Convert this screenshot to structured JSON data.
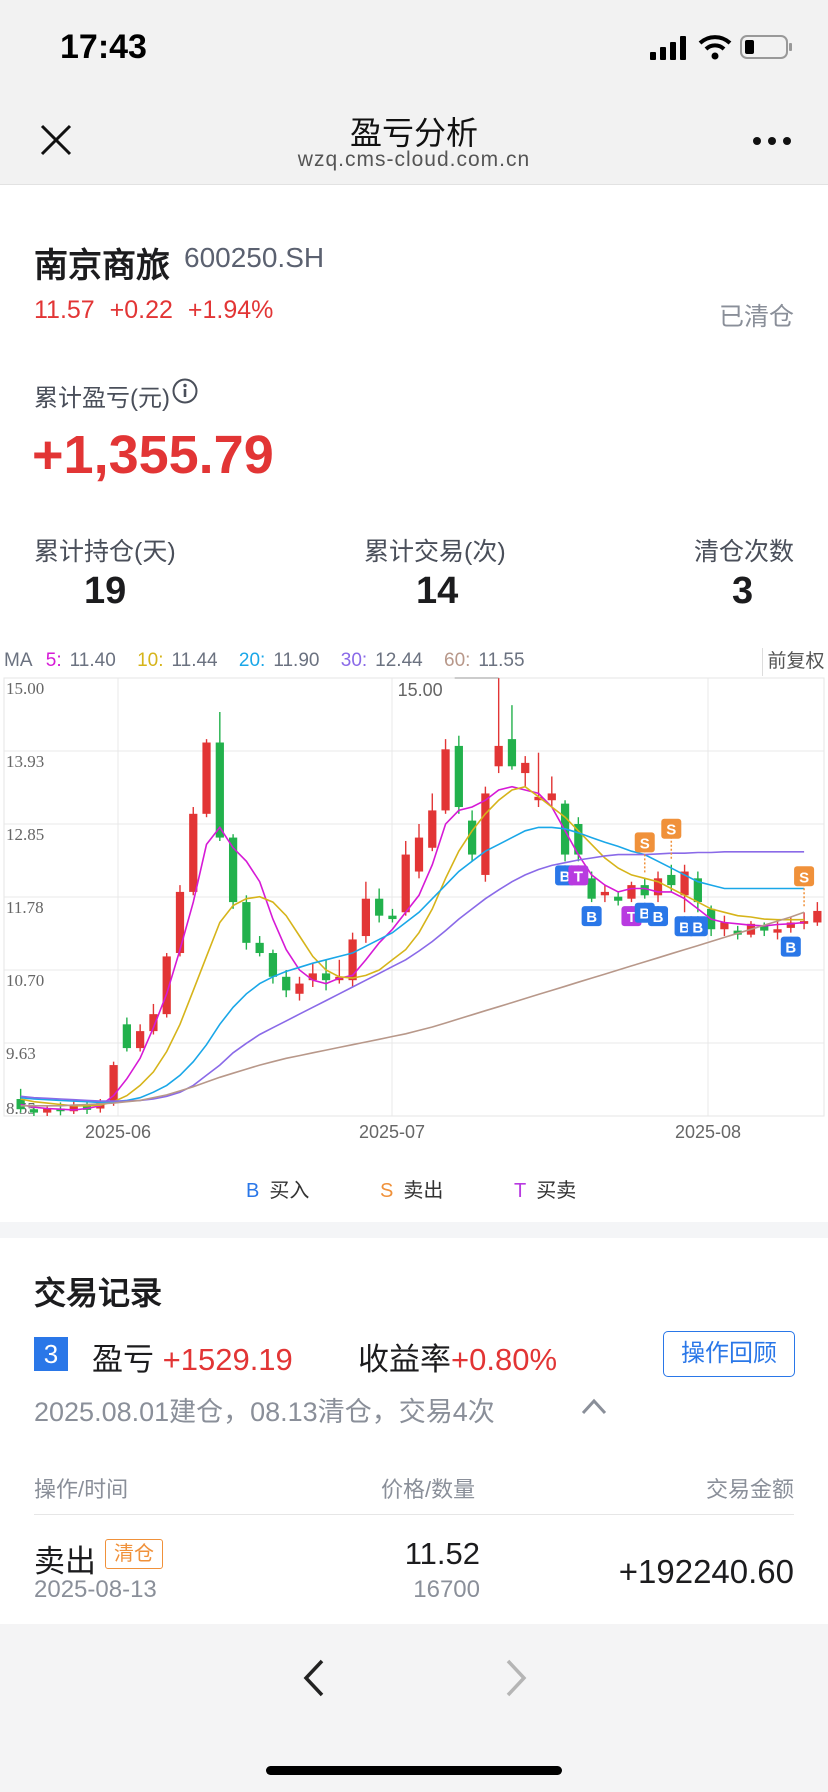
{
  "status": {
    "time": "17:43"
  },
  "nav": {
    "title": "盈亏分析",
    "subtitle": "wzq.cms-cloud.com.cn"
  },
  "stock": {
    "name": "南京商旅",
    "code": "600250.SH",
    "price": "11.57",
    "change": "+0.22",
    "pct": "+1.94%",
    "state": "已清仓"
  },
  "pnl": {
    "label": "累计盈亏(元)",
    "value": "+1,355.79"
  },
  "stats": [
    {
      "label": "累计持仓(天)",
      "value": "19"
    },
    {
      "label": "累计交易(次)",
      "value": "14"
    },
    {
      "label": "清仓次数",
      "value": "3"
    }
  ],
  "ma_bar": {
    "prefix": "MA",
    "items": [
      {
        "label": "5:",
        "value": "11.40",
        "color": "#d61ad6"
      },
      {
        "label": "10:",
        "value": "11.44",
        "color": "#d6b41a"
      },
      {
        "label": "20:",
        "value": "11.90",
        "color": "#1aa7e8"
      },
      {
        "label": "30:",
        "value": "12.44",
        "color": "#8a6ae8"
      },
      {
        "label": "60:",
        "value": "11.55",
        "color": "#b8988a"
      }
    ],
    "adjust": "前复权"
  },
  "chart_data": {
    "type": "candlestick",
    "y_ticks": [
      "15.00",
      "13.93",
      "12.85",
      "11.78",
      "10.70",
      "9.63",
      "8.55"
    ],
    "ylim": [
      8.55,
      15.0
    ],
    "x_ticks": [
      "2025-06",
      "2025-07",
      "2025-08"
    ],
    "max_label": "15.00",
    "up_color": "#e23535",
    "down_color": "#22b14c",
    "candles": [
      {
        "o": 8.8,
        "c": 8.65,
        "h": 8.95,
        "l": 8.6
      },
      {
        "o": 8.65,
        "c": 8.6,
        "h": 8.72,
        "l": 8.55
      },
      {
        "o": 8.6,
        "c": 8.66,
        "h": 8.7,
        "l": 8.55
      },
      {
        "o": 8.66,
        "c": 8.62,
        "h": 8.75,
        "l": 8.56
      },
      {
        "o": 8.62,
        "c": 8.7,
        "h": 8.78,
        "l": 8.58
      },
      {
        "o": 8.7,
        "c": 8.64,
        "h": 8.76,
        "l": 8.58
      },
      {
        "o": 8.66,
        "c": 8.74,
        "h": 8.8,
        "l": 8.6
      },
      {
        "o": 8.75,
        "c": 9.3,
        "h": 9.35,
        "l": 8.7
      },
      {
        "o": 9.9,
        "c": 9.55,
        "h": 10.0,
        "l": 9.5
      },
      {
        "o": 9.55,
        "c": 9.8,
        "h": 9.9,
        "l": 9.5
      },
      {
        "o": 9.8,
        "c": 10.05,
        "h": 10.2,
        "l": 9.75
      },
      {
        "o": 10.05,
        "c": 10.9,
        "h": 10.95,
        "l": 10.0
      },
      {
        "o": 10.95,
        "c": 11.85,
        "h": 11.95,
        "l": 10.9
      },
      {
        "o": 11.85,
        "c": 13.0,
        "h": 13.1,
        "l": 11.8
      },
      {
        "o": 13.0,
        "c": 14.05,
        "h": 14.1,
        "l": 12.95
      },
      {
        "o": 14.05,
        "c": 12.65,
        "h": 14.5,
        "l": 12.6
      },
      {
        "o": 12.65,
        "c": 11.7,
        "h": 12.7,
        "l": 11.6
      },
      {
        "o": 11.7,
        "c": 11.1,
        "h": 11.8,
        "l": 11.0
      },
      {
        "o": 11.1,
        "c": 10.95,
        "h": 11.2,
        "l": 10.9
      },
      {
        "o": 10.95,
        "c": 10.6,
        "h": 11.0,
        "l": 10.5
      },
      {
        "o": 10.6,
        "c": 10.4,
        "h": 10.7,
        "l": 10.3
      },
      {
        "o": 10.35,
        "c": 10.5,
        "h": 10.6,
        "l": 10.25
      },
      {
        "o": 10.55,
        "c": 10.65,
        "h": 10.8,
        "l": 10.45
      },
      {
        "o": 10.65,
        "c": 10.55,
        "h": 10.85,
        "l": 10.4
      },
      {
        "o": 10.55,
        "c": 10.6,
        "h": 10.85,
        "l": 10.5
      },
      {
        "o": 10.55,
        "c": 11.15,
        "h": 11.25,
        "l": 10.45
      },
      {
        "o": 11.2,
        "c": 11.75,
        "h": 12.0,
        "l": 11.1
      },
      {
        "o": 11.75,
        "c": 11.5,
        "h": 11.9,
        "l": 11.4
      },
      {
        "o": 11.5,
        "c": 11.45,
        "h": 11.6,
        "l": 11.4
      },
      {
        "o": 11.55,
        "c": 12.4,
        "h": 12.6,
        "l": 11.5
      },
      {
        "o": 12.15,
        "c": 12.65,
        "h": 12.85,
        "l": 12.05
      },
      {
        "o": 12.5,
        "c": 13.05,
        "h": 13.3,
        "l": 12.45
      },
      {
        "o": 13.05,
        "c": 13.95,
        "h": 14.1,
        "l": 13.0
      },
      {
        "o": 14.0,
        "c": 13.1,
        "h": 14.15,
        "l": 13.0
      },
      {
        "o": 12.9,
        "c": 12.4,
        "h": 13.05,
        "l": 12.3
      },
      {
        "o": 12.1,
        "c": 13.3,
        "h": 13.4,
        "l": 12.0
      },
      {
        "o": 13.7,
        "c": 14.0,
        "h": 15.0,
        "l": 13.6
      },
      {
        "o": 14.1,
        "c": 13.7,
        "h": 14.6,
        "l": 13.65
      },
      {
        "o": 13.6,
        "c": 13.75,
        "h": 13.85,
        "l": 13.4
      },
      {
        "o": 13.2,
        "c": 13.25,
        "h": 13.9,
        "l": 13.1
      },
      {
        "o": 13.2,
        "c": 13.3,
        "h": 13.55,
        "l": 13.1
      },
      {
        "o": 13.15,
        "c": 12.4,
        "h": 13.2,
        "l": 12.3
      },
      {
        "o": 12.85,
        "c": 12.4,
        "h": 12.95,
        "l": 12.3
      },
      {
        "o": 12.05,
        "c": 11.75,
        "h": 12.15,
        "l": 11.7
      },
      {
        "o": 11.8,
        "c": 11.85,
        "h": 11.95,
        "l": 11.7
      },
      {
        "o": 11.78,
        "c": 11.72,
        "h": 11.85,
        "l": 11.65
      },
      {
        "o": 11.75,
        "c": 11.95,
        "h": 12.0,
        "l": 11.7
      },
      {
        "o": 11.95,
        "c": 11.8,
        "h": 12.05,
        "l": 11.75
      },
      {
        "o": 11.8,
        "c": 12.05,
        "h": 12.15,
        "l": 11.7
      },
      {
        "o": 12.1,
        "c": 11.95,
        "h": 12.25,
        "l": 11.85
      },
      {
        "o": 11.8,
        "c": 12.15,
        "h": 12.25,
        "l": 11.55
      },
      {
        "o": 12.05,
        "c": 11.7,
        "h": 12.15,
        "l": 11.55
      },
      {
        "o": 11.6,
        "c": 11.3,
        "h": 11.65,
        "l": 11.2
      },
      {
        "o": 11.3,
        "c": 11.4,
        "h": 11.5,
        "l": 11.2
      },
      {
        "o": 11.28,
        "c": 11.22,
        "h": 11.35,
        "l": 11.15
      },
      {
        "o": 11.22,
        "c": 11.38,
        "h": 11.42,
        "l": 11.18
      },
      {
        "o": 11.35,
        "c": 11.28,
        "h": 11.4,
        "l": 11.2
      },
      {
        "o": 11.25,
        "c": 11.3,
        "h": 11.45,
        "l": 11.15
      },
      {
        "o": 11.32,
        "c": 11.4,
        "h": 11.48,
        "l": 11.25
      },
      {
        "o": 11.38,
        "c": 11.42,
        "h": 11.55,
        "l": 11.3
      },
      {
        "o": 11.4,
        "c": 11.57,
        "h": 11.7,
        "l": 11.35
      }
    ],
    "ma_lines": [
      {
        "name": "5",
        "color": "#d61ad6",
        "points": [
          8.72,
          8.68,
          8.66,
          8.65,
          8.64,
          8.66,
          8.7,
          8.85,
          9.1,
          9.4,
          9.85,
          10.35,
          11.0,
          11.7,
          12.55,
          12.8,
          12.5,
          12.3,
          12.0,
          11.45,
          11.0,
          10.7,
          10.55,
          10.5,
          10.58,
          10.62,
          10.85,
          11.1,
          11.3,
          11.55,
          11.8,
          12.25,
          12.85,
          13.05,
          13.1,
          13.2,
          13.35,
          13.4,
          13.35,
          13.3,
          13.1,
          12.75,
          12.4,
          12.1,
          11.95,
          11.85,
          11.9,
          11.9,
          11.85,
          11.85,
          11.75,
          11.6,
          11.45,
          11.4,
          11.38,
          11.36,
          11.35,
          11.37,
          11.38,
          11.4
        ]
      },
      {
        "name": "10",
        "color": "#d6b41a",
        "points": [
          8.8,
          8.76,
          8.74,
          8.72,
          8.7,
          8.7,
          8.71,
          8.76,
          8.85,
          9.0,
          9.2,
          9.5,
          9.9,
          10.4,
          10.9,
          11.4,
          11.65,
          11.75,
          11.78,
          11.7,
          11.5,
          11.2,
          10.9,
          10.7,
          10.6,
          10.58,
          10.62,
          10.7,
          10.85,
          11.0,
          11.25,
          11.6,
          12.05,
          12.45,
          12.75,
          13.0,
          13.2,
          13.35,
          13.4,
          13.25,
          13.1,
          12.95,
          12.75,
          12.55,
          12.35,
          12.2,
          12.1,
          12.05,
          12.0,
          11.9,
          11.8,
          11.7,
          11.6,
          11.55,
          11.5,
          11.48,
          11.45,
          11.44,
          11.44,
          11.44
        ]
      },
      {
        "name": "20",
        "color": "#1aa7e8",
        "points": [
          8.82,
          8.8,
          8.79,
          8.78,
          8.77,
          8.76,
          8.75,
          8.76,
          8.78,
          8.82,
          8.9,
          9.0,
          9.15,
          9.35,
          9.6,
          9.9,
          10.15,
          10.35,
          10.5,
          10.6,
          10.68,
          10.74,
          10.8,
          10.85,
          10.9,
          10.95,
          11.05,
          11.15,
          11.25,
          11.4,
          11.55,
          11.75,
          11.95,
          12.15,
          12.3,
          12.45,
          12.55,
          12.65,
          12.75,
          12.8,
          12.8,
          12.78,
          12.72,
          12.65,
          12.58,
          12.52,
          12.45,
          12.4,
          12.3,
          12.2,
          12.1,
          12.0,
          11.95,
          11.9,
          11.9,
          11.9,
          11.9,
          11.9,
          11.9,
          11.9
        ]
      },
      {
        "name": "30",
        "color": "#8a6ae8",
        "points": [
          8.84,
          8.82,
          8.81,
          8.8,
          8.79,
          8.78,
          8.77,
          8.77,
          8.77,
          8.78,
          8.8,
          8.84,
          8.9,
          9.0,
          9.15,
          9.3,
          9.48,
          9.62,
          9.75,
          9.85,
          9.95,
          10.05,
          10.15,
          10.25,
          10.35,
          10.45,
          10.55,
          10.65,
          10.75,
          10.85,
          10.98,
          11.12,
          11.28,
          11.45,
          11.6,
          11.75,
          11.88,
          12.0,
          12.1,
          12.18,
          12.24,
          12.28,
          12.32,
          12.35,
          12.38,
          12.4,
          12.4,
          12.4,
          12.41,
          12.42,
          12.42,
          12.43,
          12.43,
          12.44,
          12.44,
          12.44,
          12.44,
          12.44,
          12.44,
          12.44
        ]
      },
      {
        "name": "60",
        "color": "#b8988a",
        "points": [
          8.7,
          8.7,
          8.7,
          8.7,
          8.71,
          8.72,
          8.73,
          8.74,
          8.76,
          8.78,
          8.82,
          8.86,
          8.92,
          8.98,
          9.05,
          9.12,
          9.18,
          9.24,
          9.3,
          9.35,
          9.4,
          9.44,
          9.48,
          9.52,
          9.56,
          9.6,
          9.64,
          9.68,
          9.72,
          9.76,
          9.81,
          9.86,
          9.92,
          9.98,
          10.04,
          10.1,
          10.16,
          10.22,
          10.28,
          10.34,
          10.4,
          10.46,
          10.52,
          10.58,
          10.64,
          10.7,
          10.76,
          10.82,
          10.88,
          10.94,
          11.0,
          11.06,
          11.12,
          11.18,
          11.24,
          11.3,
          11.36,
          11.42,
          11.48,
          11.55
        ]
      }
    ],
    "markers": [
      {
        "i": 41,
        "t": "B"
      },
      {
        "i": 42,
        "t": "T"
      },
      {
        "i": 43,
        "t": "B"
      },
      {
        "i": 46,
        "t": "T"
      },
      {
        "i": 47,
        "t": "S"
      },
      {
        "i": 47,
        "t": "B"
      },
      {
        "i": 48,
        "t": "B"
      },
      {
        "i": 49,
        "t": "S"
      },
      {
        "i": 50,
        "t": "B"
      },
      {
        "i": 51,
        "t": "B"
      },
      {
        "i": 58,
        "t": "B"
      },
      {
        "i": 59,
        "t": "S"
      }
    ]
  },
  "legend": {
    "buy_letter": "B",
    "buy": "买入",
    "sell_letter": "S",
    "sell": "卖出",
    "trade_letter": "T",
    "trade": "买卖"
  },
  "records": {
    "title": "交易记录",
    "index": "3",
    "pl_label": "盈亏",
    "pl_value": "+1529.19",
    "ret_label": "收益率",
    "ret_value": "+0.80%",
    "review_button": "操作回顾",
    "summary": "2025.08.01建仓，08.13清仓，交易4次",
    "headers": {
      "op": "操作/时间",
      "price": "价格/数量",
      "amount": "交易金额"
    },
    "row": {
      "op": "卖出",
      "tag": "清仓",
      "date": "2025-08-13",
      "price": "11.52",
      "qty": "16700",
      "amount": "+192240.60"
    }
  }
}
